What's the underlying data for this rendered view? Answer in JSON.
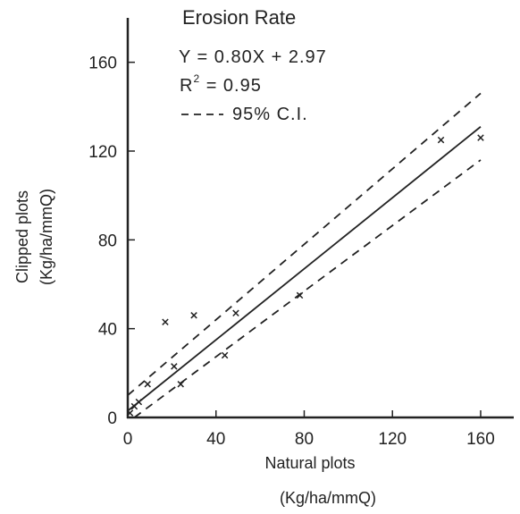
{
  "chart_data": {
    "type": "scatter",
    "title": "Erosion Rate",
    "xlabel_line1": "Natural plots",
    "xlabel_line2": "(Kg/ha/mmQ)",
    "ylabel_line1": "Clipped plots",
    "ylabel_line2": "(Kg/ha/mmQ)",
    "xlim": [
      0,
      175
    ],
    "ylim": [
      0,
      180
    ],
    "x_ticks": [
      0,
      40,
      80,
      120,
      160
    ],
    "y_ticks": [
      0,
      40,
      80,
      120,
      160
    ],
    "x_tick_labels": [
      "0",
      "40",
      "80",
      "120",
      "160"
    ],
    "y_tick_labels": [
      "0",
      "40",
      "80",
      "120",
      "160"
    ],
    "equation": "Y = 0.80X + 2.97",
    "r2_prefix": "R",
    "r2_sup": "2",
    "r2_suffix": " = 0.95",
    "ci_legend": "95% C.I.",
    "grid": false,
    "points": [
      {
        "x": 1,
        "y": 2
      },
      {
        "x": 3,
        "y": 5
      },
      {
        "x": 5,
        "y": 7
      },
      {
        "x": 9,
        "y": 15
      },
      {
        "x": 17,
        "y": 43
      },
      {
        "x": 21,
        "y": 23
      },
      {
        "x": 24,
        "y": 15
      },
      {
        "x": 30,
        "y": 46
      },
      {
        "x": 44,
        "y": 28
      },
      {
        "x": 49,
        "y": 47
      },
      {
        "x": 78,
        "y": 55
      },
      {
        "x": 142,
        "y": 125
      },
      {
        "x": 160,
        "y": 126
      }
    ],
    "fit_line": {
      "slope": 0.8,
      "intercept": 2.97,
      "x_range": [
        0,
        160
      ]
    },
    "ci_upper": [
      [
        0,
        10
      ],
      [
        160,
        146
      ]
    ],
    "ci_lower": [
      [
        3,
        0
      ],
      [
        160,
        116
      ]
    ]
  }
}
